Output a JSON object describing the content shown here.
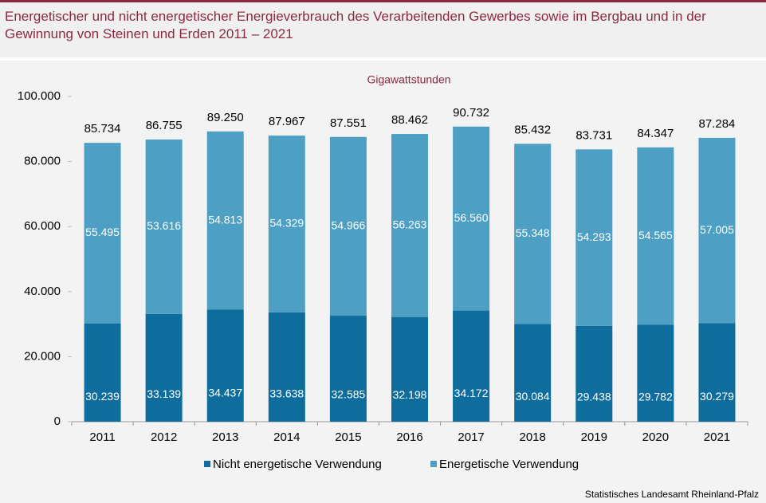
{
  "chart_data": {
    "type": "stacked-bar",
    "title": "Energetischer und nicht energetischer Energieverbrauch des Verarbeitenden Gewerbes sowie im Bergbau und in der Gewinnung von Steinen und Erden 2011 – 2021",
    "unit_label": "Gigawattstunden",
    "source": "Statistisches Landesamt Rheinland-Pfalz",
    "categories": [
      "2011",
      "2012",
      "2013",
      "2014",
      "2015",
      "2016",
      "2017",
      "2018",
      "2019",
      "2020",
      "2021"
    ],
    "series": [
      {
        "name": "Nicht energetische Verwendung",
        "color": "#0e6d9d",
        "values": [
          30239,
          33139,
          34437,
          33638,
          32585,
          32198,
          34172,
          30084,
          29438,
          29782,
          30279
        ],
        "value_labels": [
          "30.239",
          "33.139",
          "34.437",
          "33.638",
          "32.585",
          "32.198",
          "34.172",
          "30.084",
          "29.438",
          "29.782",
          "30.279"
        ]
      },
      {
        "name": "Energetische Verwendung",
        "color": "#4da0c4",
        "values": [
          55495,
          53616,
          54813,
          54329,
          54966,
          56263,
          56560,
          55348,
          54293,
          54565,
          57005
        ],
        "value_labels": [
          "55.495",
          "53.616",
          "54.813",
          "54.329",
          "54.966",
          "56.263",
          "56.560",
          "55.348",
          "54.293",
          "54.565",
          "57.005"
        ]
      }
    ],
    "totals": {
      "values": [
        85734,
        86755,
        89250,
        87967,
        87551,
        88462,
        90732,
        85432,
        83731,
        84347,
        87284
      ],
      "value_labels": [
        "85.734",
        "86.755",
        "89.250",
        "87.967",
        "87.551",
        "88.462",
        "90.732",
        "85.432",
        "83.731",
        "84.347",
        "87.284"
      ]
    },
    "ylim": [
      0,
      100000
    ],
    "yticks": [
      0,
      {
        "value": 20000,
        "label": "20.000"
      },
      {
        "value": 40000,
        "label": "40.000"
      },
      {
        "value": 60000,
        "label": "60.000"
      },
      {
        "value": 80000,
        "label": "80.000"
      },
      {
        "value": 100000,
        "label": "100.000"
      }
    ],
    "grid": false
  }
}
